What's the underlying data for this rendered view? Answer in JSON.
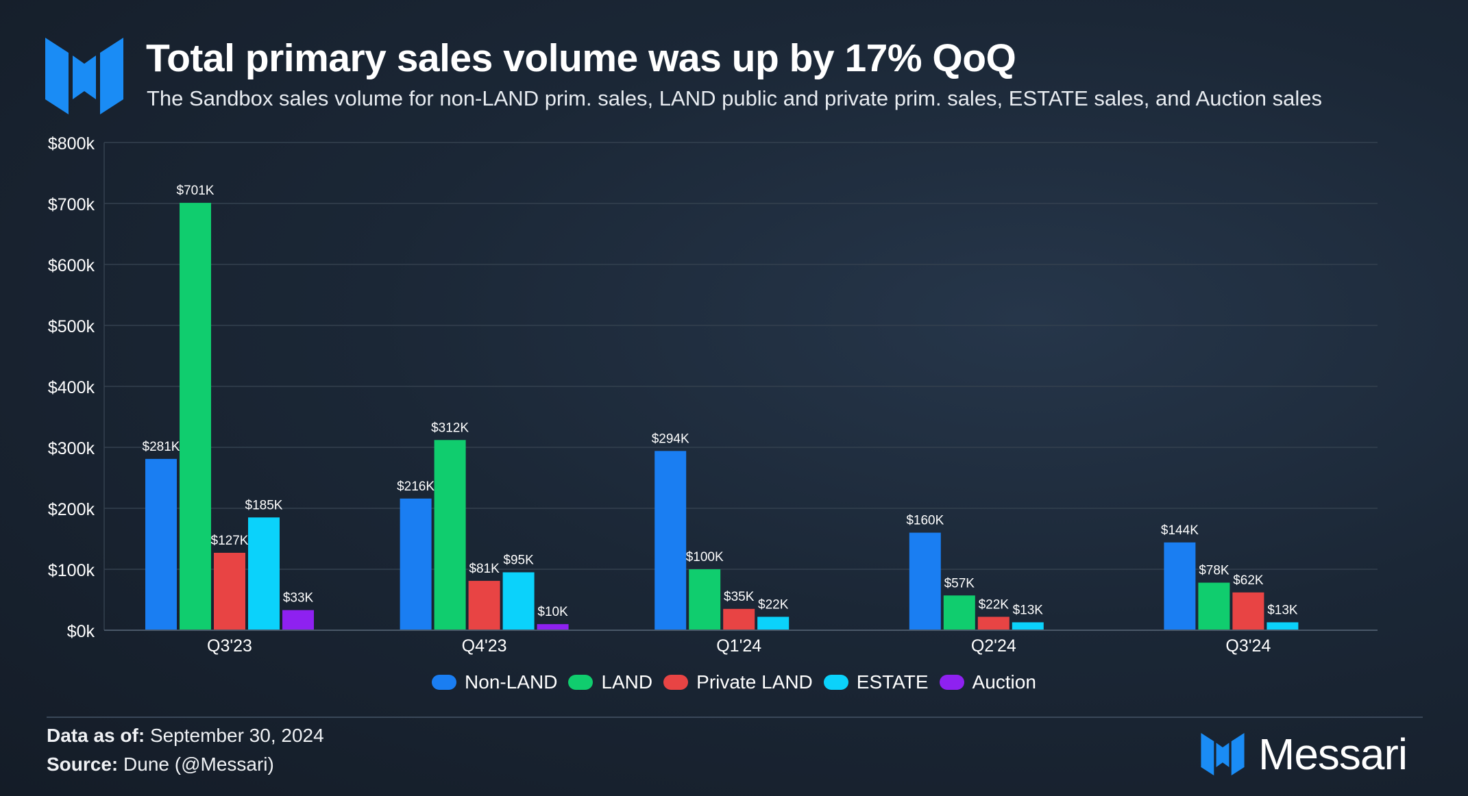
{
  "header": {
    "title": "Total primary sales volume was up by 17% QoQ",
    "subtitle": "The Sandbox sales volume for non-LAND prim. sales, LAND public and private prim. sales, ESTATE sales, and Auction sales"
  },
  "chart_data": {
    "type": "bar",
    "title": "Total primary sales volume was up by 17% QoQ",
    "xlabel": "",
    "ylabel": "",
    "ylim": [
      0,
      800
    ],
    "y_unit": "thousands USD",
    "y_ticks": [
      "$0k",
      "$100k",
      "$200k",
      "$300k",
      "$400k",
      "$500k",
      "$600k",
      "$700k",
      "$800k"
    ],
    "y_tick_values": [
      0,
      100,
      200,
      300,
      400,
      500,
      600,
      700,
      800
    ],
    "grid": true,
    "legend_position": "bottom-center",
    "categories": [
      "Q3'23",
      "Q4'23",
      "Q1'24",
      "Q2'24",
      "Q3'24"
    ],
    "series": [
      {
        "name": "Non-LAND",
        "color": "#1a7ef2",
        "values": [
          281,
          216,
          294,
          160,
          144
        ],
        "labels": [
          "$281K",
          "$216K",
          "$294K",
          "$160K",
          "$144K"
        ]
      },
      {
        "name": "LAND",
        "color": "#10cd6e",
        "values": [
          701,
          312,
          100,
          57,
          78
        ],
        "labels": [
          "$701K",
          "$312K",
          "$100K",
          "$57K",
          "$78K"
        ]
      },
      {
        "name": "Private LAND",
        "color": "#e84444",
        "values": [
          127,
          81,
          35,
          22,
          62
        ],
        "labels": [
          "$127K",
          "$81K",
          "$35K",
          "$22K",
          "$62K"
        ]
      },
      {
        "name": "ESTATE",
        "color": "#0bd2fb",
        "values": [
          185,
          95,
          22,
          13,
          13
        ],
        "labels": [
          "$185K",
          "$95K",
          "$22K",
          "$13K",
          "$13K"
        ]
      },
      {
        "name": "Auction",
        "color": "#8e21f0",
        "values": [
          33,
          10,
          null,
          null,
          null
        ],
        "labels": [
          "$33K",
          "$10K",
          null,
          null,
          null
        ]
      }
    ]
  },
  "footer": {
    "data_label": "Data as of:",
    "data_value": "September 30, 2024",
    "source_label": "Source:",
    "source_value": "Dune (@Messari)",
    "brand": "Messari"
  },
  "colors": {
    "logo": "#1a8cf5",
    "grid": "#34414f",
    "axis_text": "#ffffff"
  }
}
